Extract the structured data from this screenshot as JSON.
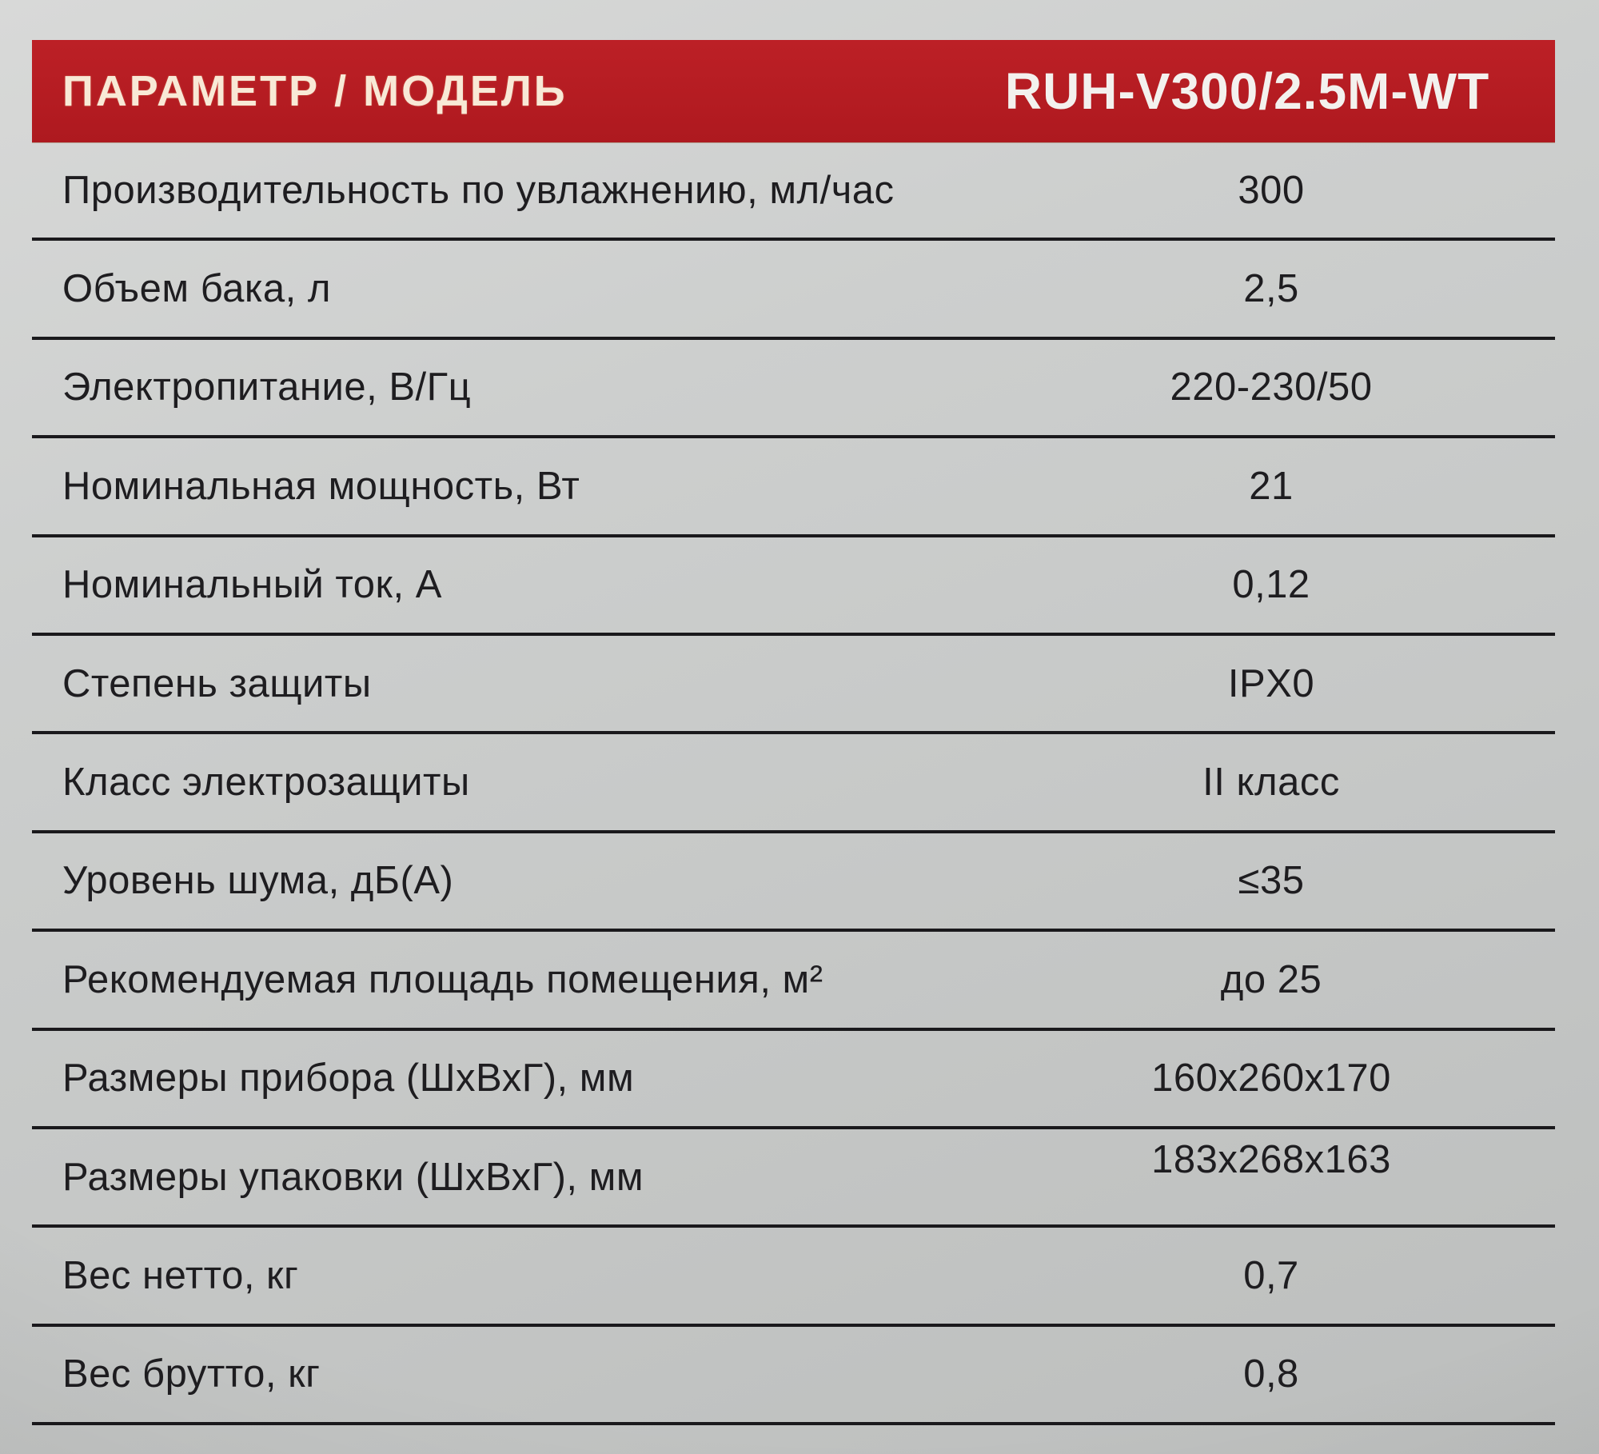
{
  "header": {
    "param_label": "ПАРАМЕТР / МОДЕЛЬ",
    "model": "RUH-V300/2.5M-WT"
  },
  "colors": {
    "header_bg": "#b31b21",
    "header_label_text": "#f8e9d6",
    "header_model_text": "#f3f1ee",
    "page_bg": "#c6c8c7",
    "row_text": "#1e1d20",
    "divider": "#1a191c"
  },
  "table": {
    "rows": [
      {
        "label": "Производительность по увлажнению, мл/час",
        "value": "300"
      },
      {
        "label": "Объем бака, л",
        "value": "2,5"
      },
      {
        "label": "Электропитание, В/Гц",
        "value": "220-230/50"
      },
      {
        "label": "Номинальная мощность, Вт",
        "value": "21"
      },
      {
        "label": "Номинальный ток, А",
        "value": "0,12"
      },
      {
        "label": "Степень защиты",
        "value": "IPX0"
      },
      {
        "label": "Класс электрозащиты",
        "value": "II класс"
      },
      {
        "label": "Уровень шума, дБ(А)",
        "value": "≤35"
      },
      {
        "label": "Рекомендуемая площадь помещения, м²",
        "value": "до 25"
      },
      {
        "label": "Размеры прибора (ШхВхГ), мм",
        "value": "160x260x170"
      },
      {
        "label": "Размеры упаковки (ШхВхГ), мм",
        "value": "183x268x163"
      },
      {
        "label": "Вес нетто, кг",
        "value": "0,7"
      },
      {
        "label": "Вес брутто, кг",
        "value": "0,8"
      }
    ]
  }
}
